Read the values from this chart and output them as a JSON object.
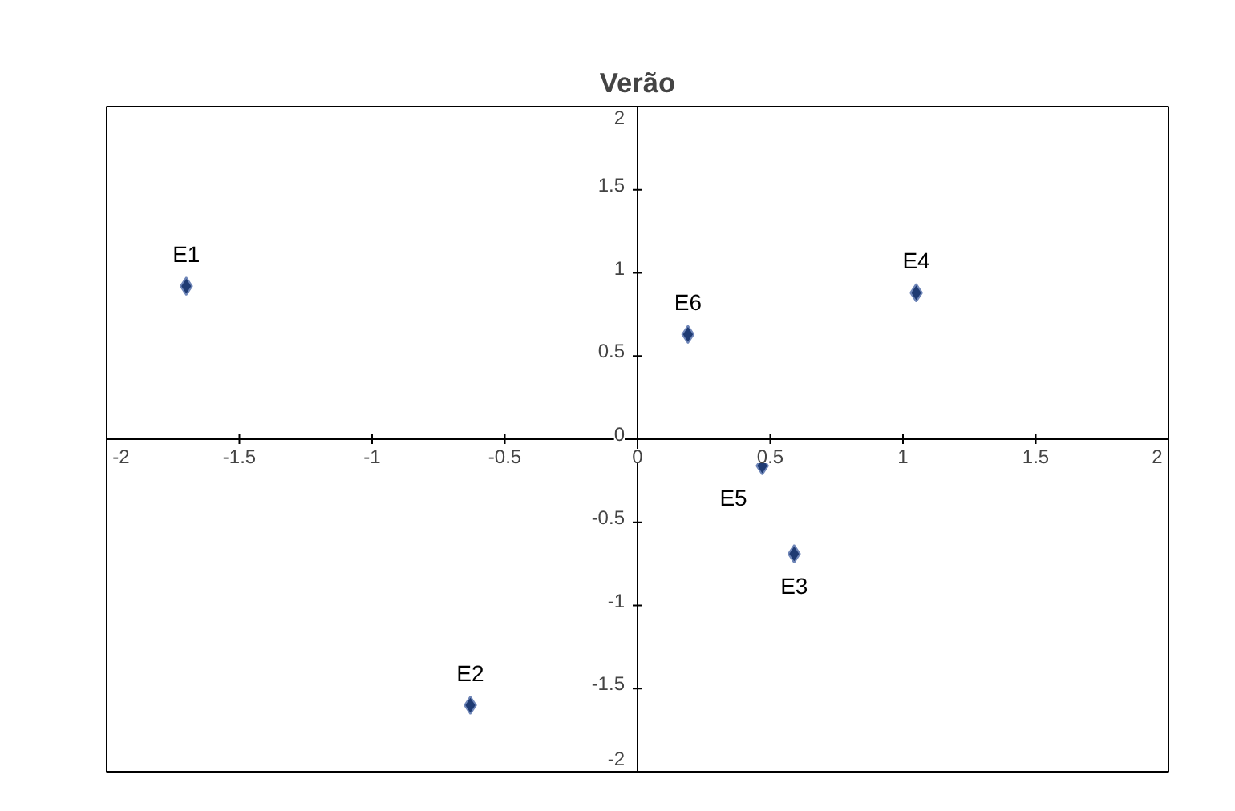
{
  "chart_data": {
    "type": "scatter",
    "title": "Verão",
    "marker": "diamond",
    "grid": false,
    "x": [
      -1.7,
      -0.63,
      0.59,
      1.05,
      0.47,
      0.19
    ],
    "series": [
      {
        "color": "#1f3b73",
        "values": [
          0.92,
          -1.6,
          -0.69,
          0.88,
          -0.16,
          0.63
        ]
      }
    ],
    "xlim": [
      -2,
      2
    ],
    "ylim": [
      -2,
      2
    ],
    "xticks": [
      -2,
      -1.5,
      -1,
      -0.5,
      0,
      0.5,
      1,
      1.5,
      2
    ],
    "yticks": [
      -2,
      -1.5,
      -1,
      -0.5,
      0,
      0.5,
      1,
      1.5,
      2
    ],
    "annotations": [
      {
        "text": "E1",
        "x": -1.7,
        "y": 0.92
      },
      {
        "text": "E2",
        "x": -0.63,
        "y": -1.6
      },
      {
        "text": "E3",
        "x": 0.59,
        "y": -0.69
      },
      {
        "text": "E4",
        "x": 1.05,
        "y": 0.88
      },
      {
        "text": "E5",
        "x": 0.47,
        "y": -0.16
      },
      {
        "text": "E6",
        "x": 0.19,
        "y": 0.63
      }
    ]
  }
}
